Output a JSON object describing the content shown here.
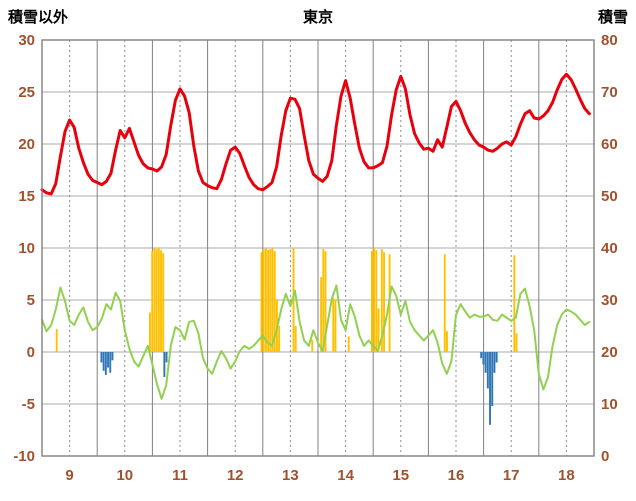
{
  "header": {
    "left_axis_title": "積雪以外",
    "title": "東京",
    "right_axis_title": "積雪"
  },
  "chart_data": {
    "type": "line",
    "title": "東京",
    "left_axis": {
      "label": "積雪以外",
      "min": -10,
      "max": 30,
      "ticks": [
        -10,
        -5,
        0,
        5,
        10,
        15,
        20,
        25,
        30
      ]
    },
    "right_axis": {
      "label": "積雪",
      "min": 0,
      "max": 80,
      "ticks": [
        0,
        10,
        20,
        30,
        40,
        50,
        60,
        70,
        80
      ]
    },
    "x_axis": {
      "min": 9,
      "max": 19,
      "ticks": [
        9,
        10,
        11,
        12,
        13,
        14,
        15,
        16,
        17,
        18
      ]
    },
    "axis_color": "#A0522D",
    "grid": {
      "h_color": "#ABABAB",
      "v_solid_color": "#808080",
      "v_dot_color": "#8C8C8C",
      "border_color": "#808080",
      "background": "#ffffff"
    },
    "series": [
      {
        "name": "orange-bars",
        "type": "bar",
        "color": "#FFC000",
        "points": [
          [
            9.27,
            2.2
          ],
          [
            10.96,
            3.8
          ],
          [
            11.0,
            9.7
          ],
          [
            11.04,
            10
          ],
          [
            11.08,
            9.9
          ],
          [
            11.12,
            10
          ],
          [
            11.16,
            9.8
          ],
          [
            11.2,
            9.5
          ],
          [
            12.98,
            9.6
          ],
          [
            13.02,
            9.9
          ],
          [
            13.06,
            10
          ],
          [
            13.1,
            9.8
          ],
          [
            13.14,
            9.9
          ],
          [
            13.18,
            10
          ],
          [
            13.22,
            9.7
          ],
          [
            13.26,
            5.0
          ],
          [
            13.3,
            2.5
          ],
          [
            13.56,
            10
          ],
          [
            13.6,
            2.5
          ],
          [
            13.9,
            1.2
          ],
          [
            14.06,
            7.2
          ],
          [
            14.1,
            9.9
          ],
          [
            14.14,
            9.7
          ],
          [
            14.28,
            5.2
          ],
          [
            14.32,
            5.0
          ],
          [
            14.56,
            1.5
          ],
          [
            14.98,
            9.7
          ],
          [
            15.02,
            10
          ],
          [
            15.06,
            9.8
          ],
          [
            15.1,
            4.2
          ],
          [
            15.16,
            9.9
          ],
          [
            15.2,
            9.6
          ],
          [
            15.3,
            9.4
          ],
          [
            16.3,
            9.4
          ],
          [
            16.34,
            2.0
          ],
          [
            17.56,
            9.3
          ],
          [
            17.6,
            1.8
          ]
        ]
      },
      {
        "name": "blue-bars",
        "type": "bar",
        "color": "#2E75B6",
        "points": [
          [
            10.08,
            -1.0
          ],
          [
            10.12,
            -1.8
          ],
          [
            10.16,
            -2.2
          ],
          [
            10.2,
            -1.5
          ],
          [
            10.24,
            -2.0
          ],
          [
            10.28,
            -0.8
          ],
          [
            11.22,
            -2.4
          ],
          [
            11.26,
            -1.0
          ],
          [
            16.96,
            -0.6
          ],
          [
            17.0,
            -1.2
          ],
          [
            17.04,
            -2.0
          ],
          [
            17.08,
            -3.5
          ],
          [
            17.12,
            -7.0
          ],
          [
            17.16,
            -5.2
          ],
          [
            17.2,
            -2.0
          ],
          [
            17.24,
            -1.0
          ]
        ]
      },
      {
        "name": "green-line",
        "type": "line",
        "color": "#92D050",
        "width": 2,
        "x_start": 9,
        "step_hours": 2,
        "values": [
          3.1,
          2.0,
          2.6,
          4.1,
          6.2,
          4.9,
          3.0,
          2.6,
          3.6,
          4.3,
          2.9,
          2.1,
          2.4,
          3.2,
          4.6,
          4.1,
          5.7,
          4.9,
          2.1,
          0.3,
          -0.9,
          -1.4,
          -0.4,
          0.6,
          -1.2,
          -3.1,
          -4.5,
          -3.2,
          0.6,
          2.4,
          2.1,
          1.2,
          2.9,
          3.0,
          1.8,
          -0.6,
          -1.6,
          -2.1,
          -0.9,
          0.1,
          -0.6,
          -1.6,
          -0.9,
          0.1,
          0.6,
          0.3,
          0.6,
          1.1,
          1.6,
          0.9,
          0.6,
          2.1,
          4.1,
          5.6,
          4.4,
          5.9,
          2.9,
          1.1,
          0.6,
          2.1,
          0.9,
          0.1,
          2.6,
          5.1,
          6.4,
          3.1,
          2.1,
          4.6,
          3.4,
          1.6,
          0.6,
          1.1,
          0.6,
          0.1,
          1.6,
          3.6,
          6.3,
          5.4,
          3.6,
          4.9,
          2.9,
          2.1,
          1.6,
          1.1,
          1.6,
          2.1,
          0.9,
          -1.1,
          -2.1,
          -0.9,
          3.6,
          4.6,
          3.9,
          3.3,
          3.6,
          3.4,
          3.4,
          3.6,
          3.1,
          3.0,
          3.6,
          3.3,
          3.0,
          3.3,
          5.6,
          6.1,
          4.4,
          2.1,
          -2.1,
          -3.6,
          -2.4,
          0.6,
          2.6,
          3.6,
          4.1,
          3.9,
          3.6,
          3.1,
          2.6,
          2.9
        ]
      },
      {
        "name": "red-line",
        "type": "line",
        "color": "#E8000D",
        "width": 3,
        "x_start": 9,
        "step_hours": 2,
        "values": [
          15.6,
          15.3,
          15.2,
          16.2,
          18.8,
          21.2,
          22.3,
          21.6,
          19.6,
          18.2,
          17.1,
          16.5,
          16.3,
          16.1,
          16.4,
          17.2,
          19.4,
          21.3,
          20.6,
          21.5,
          20.2,
          18.9,
          18.1,
          17.7,
          17.6,
          17.4,
          17.8,
          19.0,
          21.8,
          24.2,
          25.3,
          24.6,
          23.0,
          19.8,
          17.4,
          16.3,
          16.0,
          15.8,
          15.7,
          16.6,
          18.1,
          19.4,
          19.7,
          19.1,
          17.9,
          16.8,
          16.1,
          15.7,
          15.6,
          15.9,
          16.3,
          17.8,
          20.8,
          23.2,
          24.4,
          24.3,
          23.4,
          20.8,
          18.4,
          17.1,
          16.7,
          16.4,
          16.9,
          18.4,
          21.8,
          24.6,
          26.1,
          24.4,
          21.9,
          19.6,
          18.3,
          17.7,
          17.7,
          17.9,
          18.2,
          19.8,
          22.8,
          25.2,
          26.5,
          25.3,
          22.8,
          21.0,
          20.1,
          19.5,
          19.6,
          19.3,
          20.4,
          19.7,
          21.6,
          23.6,
          24.1,
          23.2,
          22.0,
          21.1,
          20.4,
          19.9,
          19.7,
          19.4,
          19.3,
          19.6,
          20.0,
          20.2,
          19.9,
          20.7,
          21.9,
          22.9,
          23.2,
          22.5,
          22.4,
          22.7,
          23.2,
          24.0,
          25.2,
          26.2,
          26.7,
          26.2,
          25.3,
          24.3,
          23.4,
          22.9
        ]
      }
    ]
  }
}
